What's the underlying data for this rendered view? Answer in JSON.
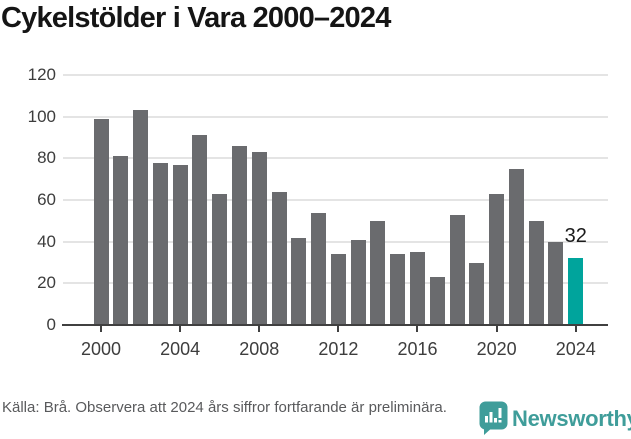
{
  "title": "Cykelstölder i Vara 2000–2024",
  "chart_data": {
    "type": "bar",
    "title": "Cykelstölder i Vara 2000–2024",
    "categories": [
      2000,
      2001,
      2002,
      2003,
      2004,
      2005,
      2006,
      2007,
      2008,
      2009,
      2010,
      2011,
      2012,
      2013,
      2014,
      2015,
      2016,
      2017,
      2018,
      2019,
      2020,
      2021,
      2022,
      2023,
      2024
    ],
    "values": [
      99,
      81,
      103,
      78,
      77,
      91,
      63,
      86,
      83,
      64,
      42,
      54,
      34,
      41,
      50,
      34,
      35,
      23,
      53,
      30,
      63,
      75,
      50,
      40,
      32
    ],
    "highlight_category": 2024,
    "data_label": {
      "category": 2024,
      "text": "32"
    },
    "xlabel": "",
    "ylabel": "",
    "ylim": [
      0,
      120
    ],
    "yticks": [
      0,
      20,
      40,
      60,
      80,
      100,
      120
    ],
    "xtick_labels": [
      "2000",
      "2004",
      "2008",
      "2012",
      "2016",
      "2020",
      "2024"
    ],
    "xtick_years": [
      2000,
      2004,
      2008,
      2012,
      2016,
      2020,
      2024
    ],
    "grid": "horizontal",
    "legend": "none",
    "colors": {
      "bar": "#6a6b6e",
      "highlight": "#00a49c",
      "gridline": "#e4e4e4",
      "axis": "#404040",
      "tick_label": "#3d3d3d",
      "value_label": "#1a1a1a"
    }
  },
  "footer": {
    "source": "Källa: Brå. Observera att 2024 års siffror fortfarande är preliminära.",
    "brand": "Newsworthy",
    "brand_color": "#3f9d9a"
  }
}
